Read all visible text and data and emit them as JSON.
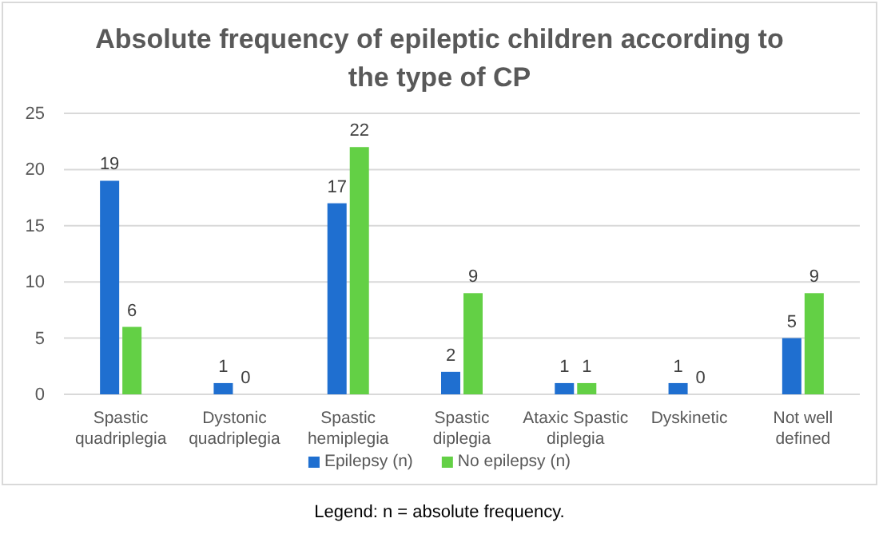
{
  "chart_data": {
    "type": "bar",
    "title": "Absolute frequency of epileptic children according to the type of CP",
    "categories": [
      "Spastic quadriplegia",
      "Dystonic quadriplegia",
      "Spastic hemiplegia",
      "Spastic diplegia",
      "Ataxic Spastic diplegia",
      "Dyskinetic",
      "Not well defined"
    ],
    "series": [
      {
        "name": "Epilepsy (n)",
        "color": "#1f6fd0",
        "values": [
          19,
          1,
          17,
          2,
          1,
          1,
          5
        ]
      },
      {
        "name": "No epilepsy (n)",
        "color": "#63d045",
        "values": [
          6,
          0,
          22,
          9,
          1,
          0,
          9
        ]
      }
    ],
    "ylim": [
      0,
      25
    ],
    "yticks": [
      0,
      5,
      10,
      15,
      20,
      25
    ],
    "grid": "y",
    "legend": "bottom",
    "data_labels": true,
    "annotations": [
      "Legend: n = absolute frequency."
    ]
  }
}
